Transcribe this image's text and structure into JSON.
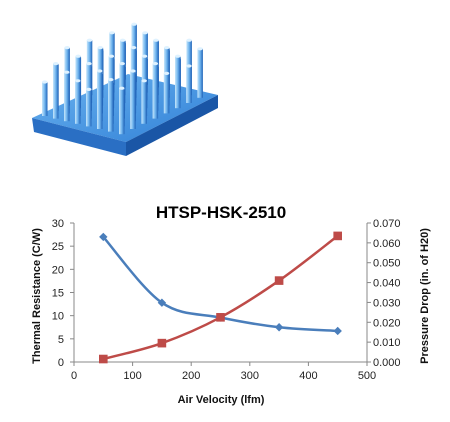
{
  "product_image": {
    "icon": "heatsink-pin-fin-icon",
    "colors": {
      "base": "#2f7fd6",
      "pin_light": "#9ad0f7",
      "pin_dark": "#1f63b8"
    }
  },
  "chart_data": {
    "type": "line",
    "title": "HTSP-HSK-2510",
    "xlabel": "Air Velocity (lfm)",
    "ylabel": "Thermal Resistance (C/W)",
    "y2label": "Pressure Drop (in. of H20)",
    "xlim": [
      0,
      500
    ],
    "ylim": [
      0,
      30
    ],
    "y2lim": [
      0,
      0.07
    ],
    "x_ticks": [
      "0",
      "100",
      "200",
      "300",
      "400",
      "500"
    ],
    "y_ticks": [
      "0",
      "5",
      "10",
      "15",
      "20",
      "25",
      "30"
    ],
    "y2_ticks": [
      "0.000",
      "0.010",
      "0.020",
      "0.030",
      "0.040",
      "0.050",
      "0.060",
      "0.070"
    ],
    "grid": false,
    "legend": "none",
    "series": [
      {
        "axis": "left",
        "color": "#4a7ebb",
        "marker": "diamond",
        "x": [
          50,
          150,
          250,
          350,
          450
        ],
        "y": [
          27.0,
          12.8,
          9.6,
          7.5,
          6.7
        ]
      },
      {
        "axis": "right",
        "color": "#be4b48",
        "marker": "square",
        "x": [
          50,
          150,
          250,
          350,
          450
        ],
        "y": [
          0.0015,
          0.0095,
          0.0225,
          0.041,
          0.0635
        ]
      }
    ]
  }
}
